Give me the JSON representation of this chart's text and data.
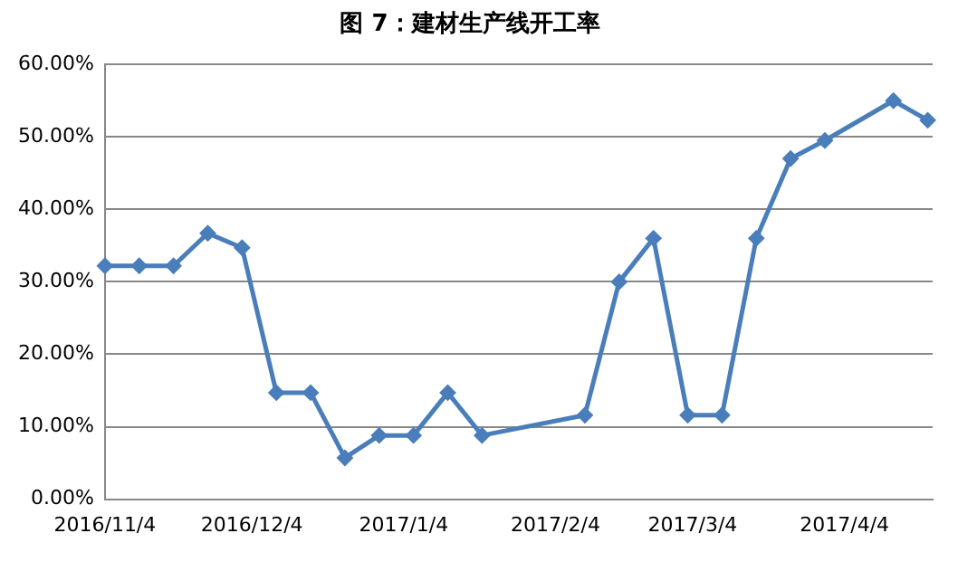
{
  "chart_data": {
    "type": "line",
    "title": "图 7：建材生产线开工率",
    "x": [
      "2016-11-04",
      "2016-11-11",
      "2016-11-18",
      "2016-11-25",
      "2016-12-02",
      "2016-12-09",
      "2016-12-16",
      "2016-12-23",
      "2016-12-30",
      "2017-01-06",
      "2017-01-13",
      "2017-01-20",
      "2017-02-10",
      "2017-02-17",
      "2017-02-24",
      "2017-03-03",
      "2017-03-10",
      "2017-03-17",
      "2017-03-24",
      "2017-03-31",
      "2017-04-14",
      "2017-04-21"
    ],
    "series": [
      {
        "color": "#4a7ebb",
        "values": [
          32.2,
          32.2,
          32.2,
          36.7,
          34.7,
          14.7,
          14.7,
          5.7,
          8.8,
          8.8,
          14.7,
          8.8,
          11.6,
          30,
          36,
          11.6,
          11.6,
          36,
          47,
          49.5,
          55,
          52.3
        ]
      }
    ],
    "xlim": [
      "2016-11-04",
      "2017-04-22"
    ],
    "xticks": [
      {
        "value": "2016-11-04",
        "label": "2016/11/4"
      },
      {
        "value": "2016-12-04",
        "label": "2016/12/4"
      },
      {
        "value": "2017-01-04",
        "label": "2017/1/4"
      },
      {
        "value": "2017-02-04",
        "label": "2017/2/4"
      },
      {
        "value": "2017-03-04",
        "label": "2017/3/4"
      },
      {
        "value": "2017-04-04",
        "label": "2017/4/4"
      }
    ],
    "ylim": [
      0,
      60
    ],
    "yticks": [
      {
        "value": 0,
        "label": "0.00%"
      },
      {
        "value": 10,
        "label": "10.00%"
      },
      {
        "value": 20,
        "label": "20.00%"
      },
      {
        "value": 30,
        "label": "30.00%"
      },
      {
        "value": 40,
        "label": "40.00%"
      },
      {
        "value": 50,
        "label": "50.00%"
      },
      {
        "value": 60,
        "label": "60.00%"
      }
    ],
    "grid": "y",
    "marker": "diamond",
    "line_style": "solid",
    "legend": false
  }
}
